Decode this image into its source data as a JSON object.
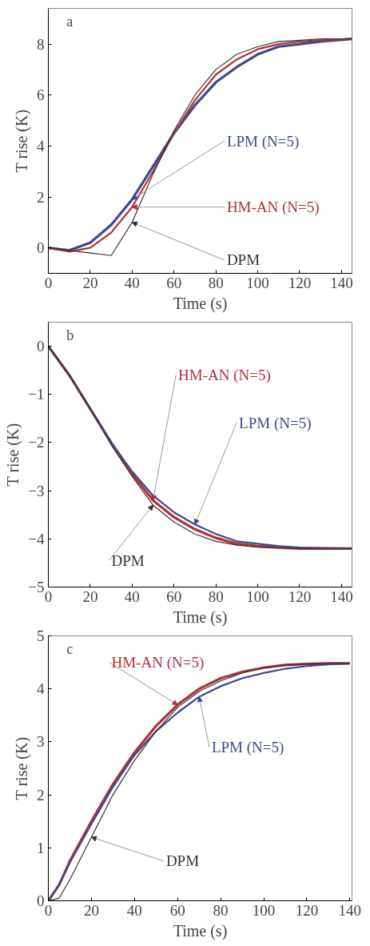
{
  "chart_data": [
    {
      "type": "line",
      "title": "a",
      "xlabel": "Time (s)",
      "ylabel": "T rise (K)",
      "xlim": [
        0,
        145
      ],
      "ylim": [
        -1,
        9.4
      ],
      "xticks": [
        0,
        20,
        40,
        60,
        80,
        100,
        120,
        140
      ],
      "yticks": [
        0,
        2,
        4,
        6,
        8
      ],
      "grid": false,
      "marker": "none",
      "line_style": "solid",
      "x": [
        0,
        10,
        20,
        30,
        40,
        50,
        60,
        70,
        80,
        90,
        100,
        110,
        120,
        130,
        145
      ],
      "series": [
        {
          "name": "LPM (N=5)",
          "color": "#3c4a8c",
          "values": [
            0,
            -0.1,
            0.2,
            0.9,
            1.9,
            3.2,
            4.5,
            5.6,
            6.5,
            7.1,
            7.6,
            7.9,
            8.0,
            8.1,
            8.2
          ]
        },
        {
          "name": "HM-AN (N=5)",
          "color": "#b03038",
          "values": [
            0,
            -0.15,
            0.0,
            0.6,
            1.6,
            3.0,
            4.5,
            5.8,
            6.8,
            7.4,
            7.8,
            8.0,
            8.1,
            8.15,
            8.2
          ]
        },
        {
          "name": "DPM",
          "color": "#333333",
          "values": [
            0,
            -0.1,
            -0.2,
            -0.3,
            1.0,
            2.9,
            4.6,
            6.0,
            7.0,
            7.6,
            7.9,
            8.1,
            8.15,
            8.2,
            8.2
          ]
        }
      ]
    },
    {
      "type": "line",
      "title": "b",
      "xlabel": "Time (s)",
      "ylabel": "T rise (K)",
      "xlim": [
        0,
        145
      ],
      "ylim": [
        -5,
        0.5
      ],
      "xticks": [
        0,
        20,
        40,
        60,
        80,
        100,
        120,
        140
      ],
      "yticks": [
        -5,
        -4,
        -3,
        -2,
        -1,
        0
      ],
      "grid": false,
      "marker": "none",
      "line_style": "solid",
      "x": [
        0,
        10,
        20,
        30,
        40,
        50,
        60,
        70,
        80,
        90,
        100,
        110,
        120,
        145
      ],
      "series": [
        {
          "name": "HM-AN (N=5)",
          "color": "#b03038",
          "values": [
            0,
            -0.6,
            -1.3,
            -2.0,
            -2.65,
            -3.2,
            -3.55,
            -3.8,
            -3.98,
            -4.1,
            -4.15,
            -4.18,
            -4.2,
            -4.2
          ]
        },
        {
          "name": "LPM (N=5)",
          "color": "#3c4a8c",
          "values": [
            0,
            -0.6,
            -1.3,
            -2.0,
            -2.6,
            -3.1,
            -3.45,
            -3.7,
            -3.9,
            -4.05,
            -4.1,
            -4.15,
            -4.18,
            -4.2
          ]
        },
        {
          "name": "DPM",
          "color": "#333333",
          "values": [
            0,
            -0.6,
            -1.3,
            -2.05,
            -2.7,
            -3.3,
            -3.65,
            -3.9,
            -4.05,
            -4.13,
            -4.17,
            -4.19,
            -4.2,
            -4.2
          ]
        }
      ]
    },
    {
      "type": "line",
      "title": "c",
      "xlabel": "Time (s)",
      "ylabel": "T rise (K)",
      "xlim": [
        0,
        141
      ],
      "ylim": [
        0,
        5
      ],
      "xticks": [
        0,
        20,
        40,
        60,
        80,
        100,
        120,
        140
      ],
      "yticks": [
        0,
        1,
        2,
        3,
        4,
        5
      ],
      "grid": false,
      "marker": "none",
      "line_style": "solid",
      "x": [
        0,
        5,
        10,
        20,
        30,
        40,
        50,
        60,
        70,
        80,
        90,
        100,
        110,
        120,
        130,
        140
      ],
      "series": [
        {
          "name": "HM-AN (N=5)",
          "color": "#b03038",
          "values": [
            0,
            0.3,
            0.75,
            1.5,
            2.2,
            2.8,
            3.3,
            3.7,
            4.0,
            4.2,
            4.32,
            4.4,
            4.45,
            4.47,
            4.48,
            4.48
          ]
        },
        {
          "name": "LPM (N=5)",
          "color": "#3c4a8c",
          "values": [
            0,
            0.3,
            0.72,
            1.45,
            2.15,
            2.75,
            3.2,
            3.55,
            3.85,
            4.05,
            4.2,
            4.3,
            4.38,
            4.43,
            4.46,
            4.48
          ]
        },
        {
          "name": "DPM",
          "color": "#333333",
          "values": [
            0,
            0.05,
            0.4,
            1.2,
            2.0,
            2.65,
            3.2,
            3.65,
            3.95,
            4.15,
            4.3,
            4.4,
            4.45,
            4.47,
            4.48,
            4.48
          ]
        }
      ]
    }
  ]
}
